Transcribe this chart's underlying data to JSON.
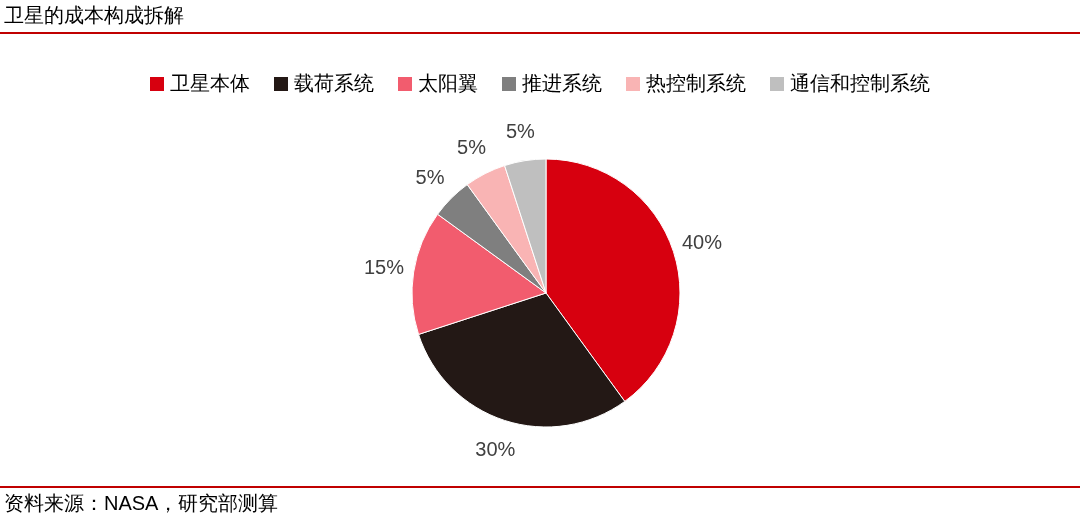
{
  "chart_data": {
    "type": "pie",
    "title": "卫星的成本构成拆解",
    "categories": [
      "卫星本体",
      "载荷系统",
      "太阳翼",
      "推进系统",
      "热控制系统",
      "通信和控制系统"
    ],
    "values": [
      40,
      30,
      15,
      5,
      5,
      5
    ],
    "colors": [
      "#d7000f",
      "#231815",
      "#f25c6e",
      "#7f7f7f",
      "#f9b4b4",
      "#bfbfbf"
    ],
    "value_labels": [
      "40%",
      "30%",
      "15%",
      "5%",
      "5%",
      "5%"
    ],
    "legend": "top",
    "annotations": [
      "资料来源：NASA，研究部测算"
    ]
  }
}
